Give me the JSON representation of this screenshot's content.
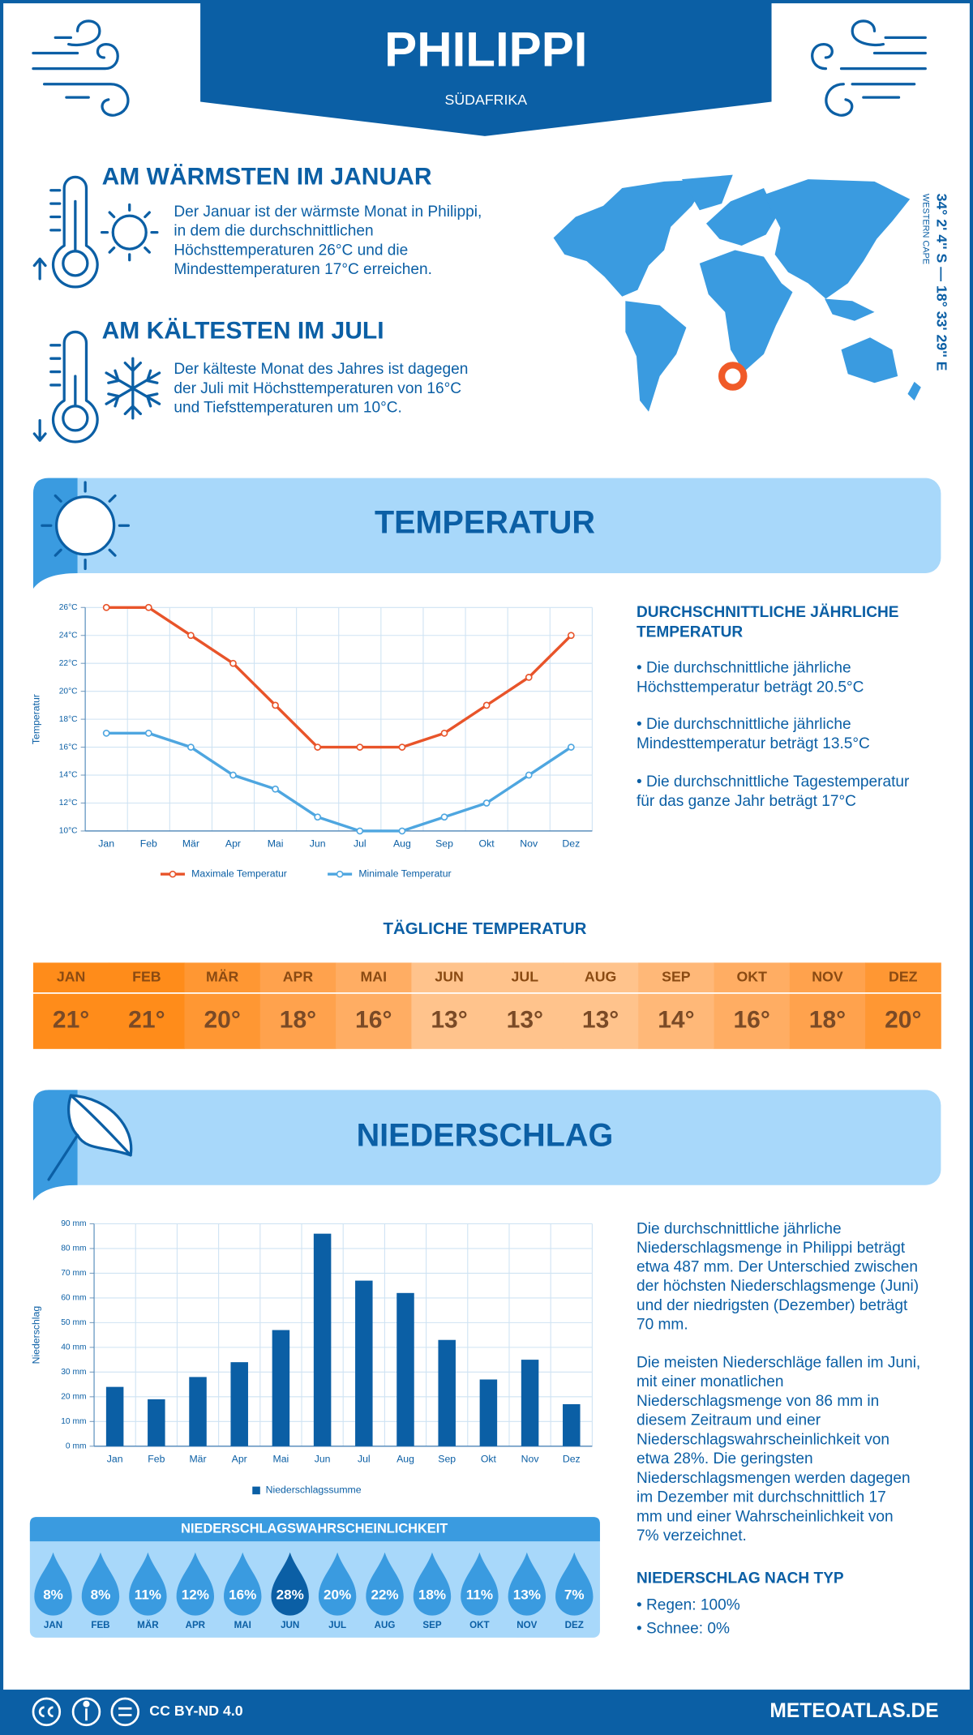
{
  "header": {
    "title": "PHILIPPI",
    "subtitle": "SÜDAFRIKA"
  },
  "warmest": {
    "heading": "AM WÄRMSTEN IM JANUAR",
    "lines": [
      "Der Januar ist der wärmste Monat in Philippi,",
      "in dem die durchschnittlichen",
      "Höchsttemperaturen 26°C und die",
      "Mindesttemperaturen 17°C erreichen."
    ]
  },
  "coldest": {
    "heading": "AM KÄLTESTEN IM JULI",
    "lines": [
      "Der kälteste Monat des Jahres ist dagegen",
      "der Juli mit Höchsttemperaturen von 16°C",
      "und Tiefsttemperaturen um 10°C."
    ]
  },
  "location": {
    "coordinates": "34° 2' 4'' S — 18° 33' 29'' E",
    "region": "WESTERN CAPE"
  },
  "temperature": {
    "title": "TEMPERATUR",
    "summary_heading": [
      "DURCHSCHNITTLICHE JÄHRLICHE",
      "TEMPERATUR"
    ],
    "bullets": [
      [
        "• Die durchschnittliche jährliche",
        "Höchsttemperatur beträgt 20.5°C"
      ],
      [
        "• Die durchschnittliche jährliche",
        "Mindesttemperatur beträgt 13.5°C"
      ],
      [
        "• Die durchschnittliche Tagestemperatur",
        "für das ganze Jahr beträgt 17°C"
      ]
    ]
  },
  "chart_data": [
    {
      "type": "line",
      "y_label": "Temperatur",
      "categories": [
        "Jan",
        "Feb",
        "Mär",
        "Apr",
        "Mai",
        "Jun",
        "Jul",
        "Aug",
        "Sep",
        "Okt",
        "Nov",
        "Dez"
      ],
      "series": [
        {
          "name": "Maximale Temperatur",
          "color": "#e8542a",
          "values": [
            26,
            26,
            24,
            22,
            19,
            16,
            16,
            16,
            17,
            19,
            21,
            24
          ]
        },
        {
          "name": "Minimale Temperatur",
          "color": "#4ea6e0",
          "values": [
            17,
            17,
            16,
            14,
            13,
            11,
            10,
            10,
            11,
            12,
            14,
            16
          ]
        }
      ],
      "ylim": [
        10,
        26
      ],
      "yticks": [
        {
          "value": 10,
          "label": "10°C"
        },
        {
          "value": 12,
          "label": "12°C"
        },
        {
          "value": 14,
          "label": "14°C"
        },
        {
          "value": 16,
          "label": "16°C"
        },
        {
          "value": 18,
          "label": "18°C"
        },
        {
          "value": 20,
          "label": "20°C"
        },
        {
          "value": 22,
          "label": "22°C"
        },
        {
          "value": 24,
          "label": "24°C"
        },
        {
          "value": 26,
          "label": "26°C"
        }
      ],
      "grid": true
    },
    {
      "type": "bar",
      "y_label": "Niederschlag",
      "categories": [
        "Jan",
        "Feb",
        "Mär",
        "Apr",
        "Mai",
        "Jun",
        "Jul",
        "Aug",
        "Sep",
        "Okt",
        "Nov",
        "Dez"
      ],
      "series": [
        {
          "name": "Niederschlagssumme",
          "color": "#0b5fa5",
          "values": [
            24,
            19,
            28,
            34,
            47,
            86,
            67,
            62,
            43,
            27,
            35,
            17
          ]
        }
      ],
      "ylim": [
        0,
        90
      ],
      "yticks": [
        {
          "value": 0,
          "label": "0 mm"
        },
        {
          "value": 10,
          "label": "10 mm"
        },
        {
          "value": 20,
          "label": "20 mm"
        },
        {
          "value": 30,
          "label": "30 mm"
        },
        {
          "value": 40,
          "label": "40 mm"
        },
        {
          "value": 50,
          "label": "50 mm"
        },
        {
          "value": 60,
          "label": "60 mm"
        },
        {
          "value": 70,
          "label": "70 mm"
        },
        {
          "value": 80,
          "label": "80 mm"
        },
        {
          "value": 90,
          "label": "90 mm"
        }
      ],
      "grid": true
    }
  ],
  "daily_temperature": {
    "title": "TÄGLICHE TEMPERATUR",
    "months": [
      "JAN",
      "FEB",
      "MÄR",
      "APR",
      "MAI",
      "JUN",
      "JUL",
      "AUG",
      "SEP",
      "OKT",
      "NOV",
      "DEZ"
    ],
    "values": [
      21,
      21,
      20,
      18,
      16,
      13,
      13,
      13,
      14,
      16,
      18,
      20
    ],
    "value_labels": [
      "21°",
      "21°",
      "20°",
      "18°",
      "16°",
      "13°",
      "13°",
      "13°",
      "14°",
      "16°",
      "18°",
      "20°"
    ],
    "colors": [
      "#ff8c1a",
      "#ff8c1a",
      "#ff9733",
      "#ffa24d",
      "#ffad63",
      "#ffc38c",
      "#ffc38c",
      "#ffc38c",
      "#ffb878",
      "#ffad63",
      "#ffa24d",
      "#ff9733"
    ]
  },
  "precipitation": {
    "title": "NIEDERSCHLAG",
    "paragraphs": [
      [
        "Die durchschnittliche jährliche",
        "Niederschlagsmenge in Philippi beträgt",
        "etwa 487 mm. Der Unterschied zwischen",
        "der höchsten Niederschlagsmenge (Juni)",
        "und der niedrigsten (Dezember) beträgt",
        "70 mm."
      ],
      [
        "Die meisten Niederschläge fallen im Juni,",
        "mit einer monatlichen",
        "Niederschlagsmenge von 86 mm in",
        "diesem Zeitraum und einer",
        "Niederschlagswahrscheinlichkeit von",
        "etwa 28%. Die geringsten",
        "Niederschlagsmengen werden dagegen",
        "im Dezember mit durchschnittlich 17",
        "mm und einer Wahrscheinlichkeit von",
        "7% verzeichnet."
      ]
    ],
    "type_heading": "NIEDERSCHLAG NACH TYP",
    "types": [
      "• Regen: 100%",
      "• Schnee: 0%"
    ]
  },
  "probability": {
    "title": "NIEDERSCHLAGSWAHRSCHEINLICHKEIT",
    "months": [
      "JAN",
      "FEB",
      "MÄR",
      "APR",
      "MAI",
      "JUN",
      "JUL",
      "AUG",
      "SEP",
      "OKT",
      "NOV",
      "DEZ"
    ],
    "values": [
      8,
      8,
      11,
      12,
      16,
      28,
      20,
      22,
      18,
      11,
      13,
      7
    ],
    "value_labels": [
      "8%",
      "8%",
      "11%",
      "12%",
      "16%",
      "28%",
      "20%",
      "22%",
      "18%",
      "11%",
      "13%",
      "7%"
    ],
    "colors": [
      "#3a9be0",
      "#3a9be0",
      "#3a9be0",
      "#3a9be0",
      "#3a9be0",
      "#0b5fa5",
      "#3a9be0",
      "#3a9be0",
      "#3a9be0",
      "#3a9be0",
      "#3a9be0",
      "#3a9be0"
    ]
  },
  "footer": {
    "license": "CC BY-ND 4.0",
    "site": "METEOATLAS.DE"
  }
}
